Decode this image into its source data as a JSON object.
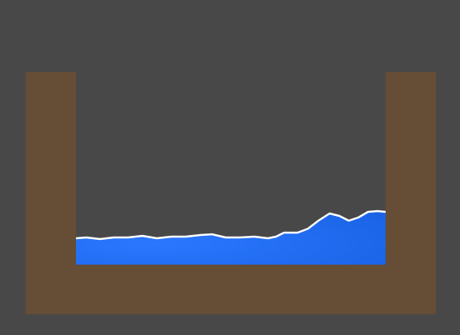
{
  "scene": {
    "background_color": "#484848",
    "container": {
      "color": "#654D36"
    },
    "water": {
      "color": "#1A63E6",
      "highlight_color": "#2B78FF",
      "surface_color": "#FFFFFF"
    }
  }
}
